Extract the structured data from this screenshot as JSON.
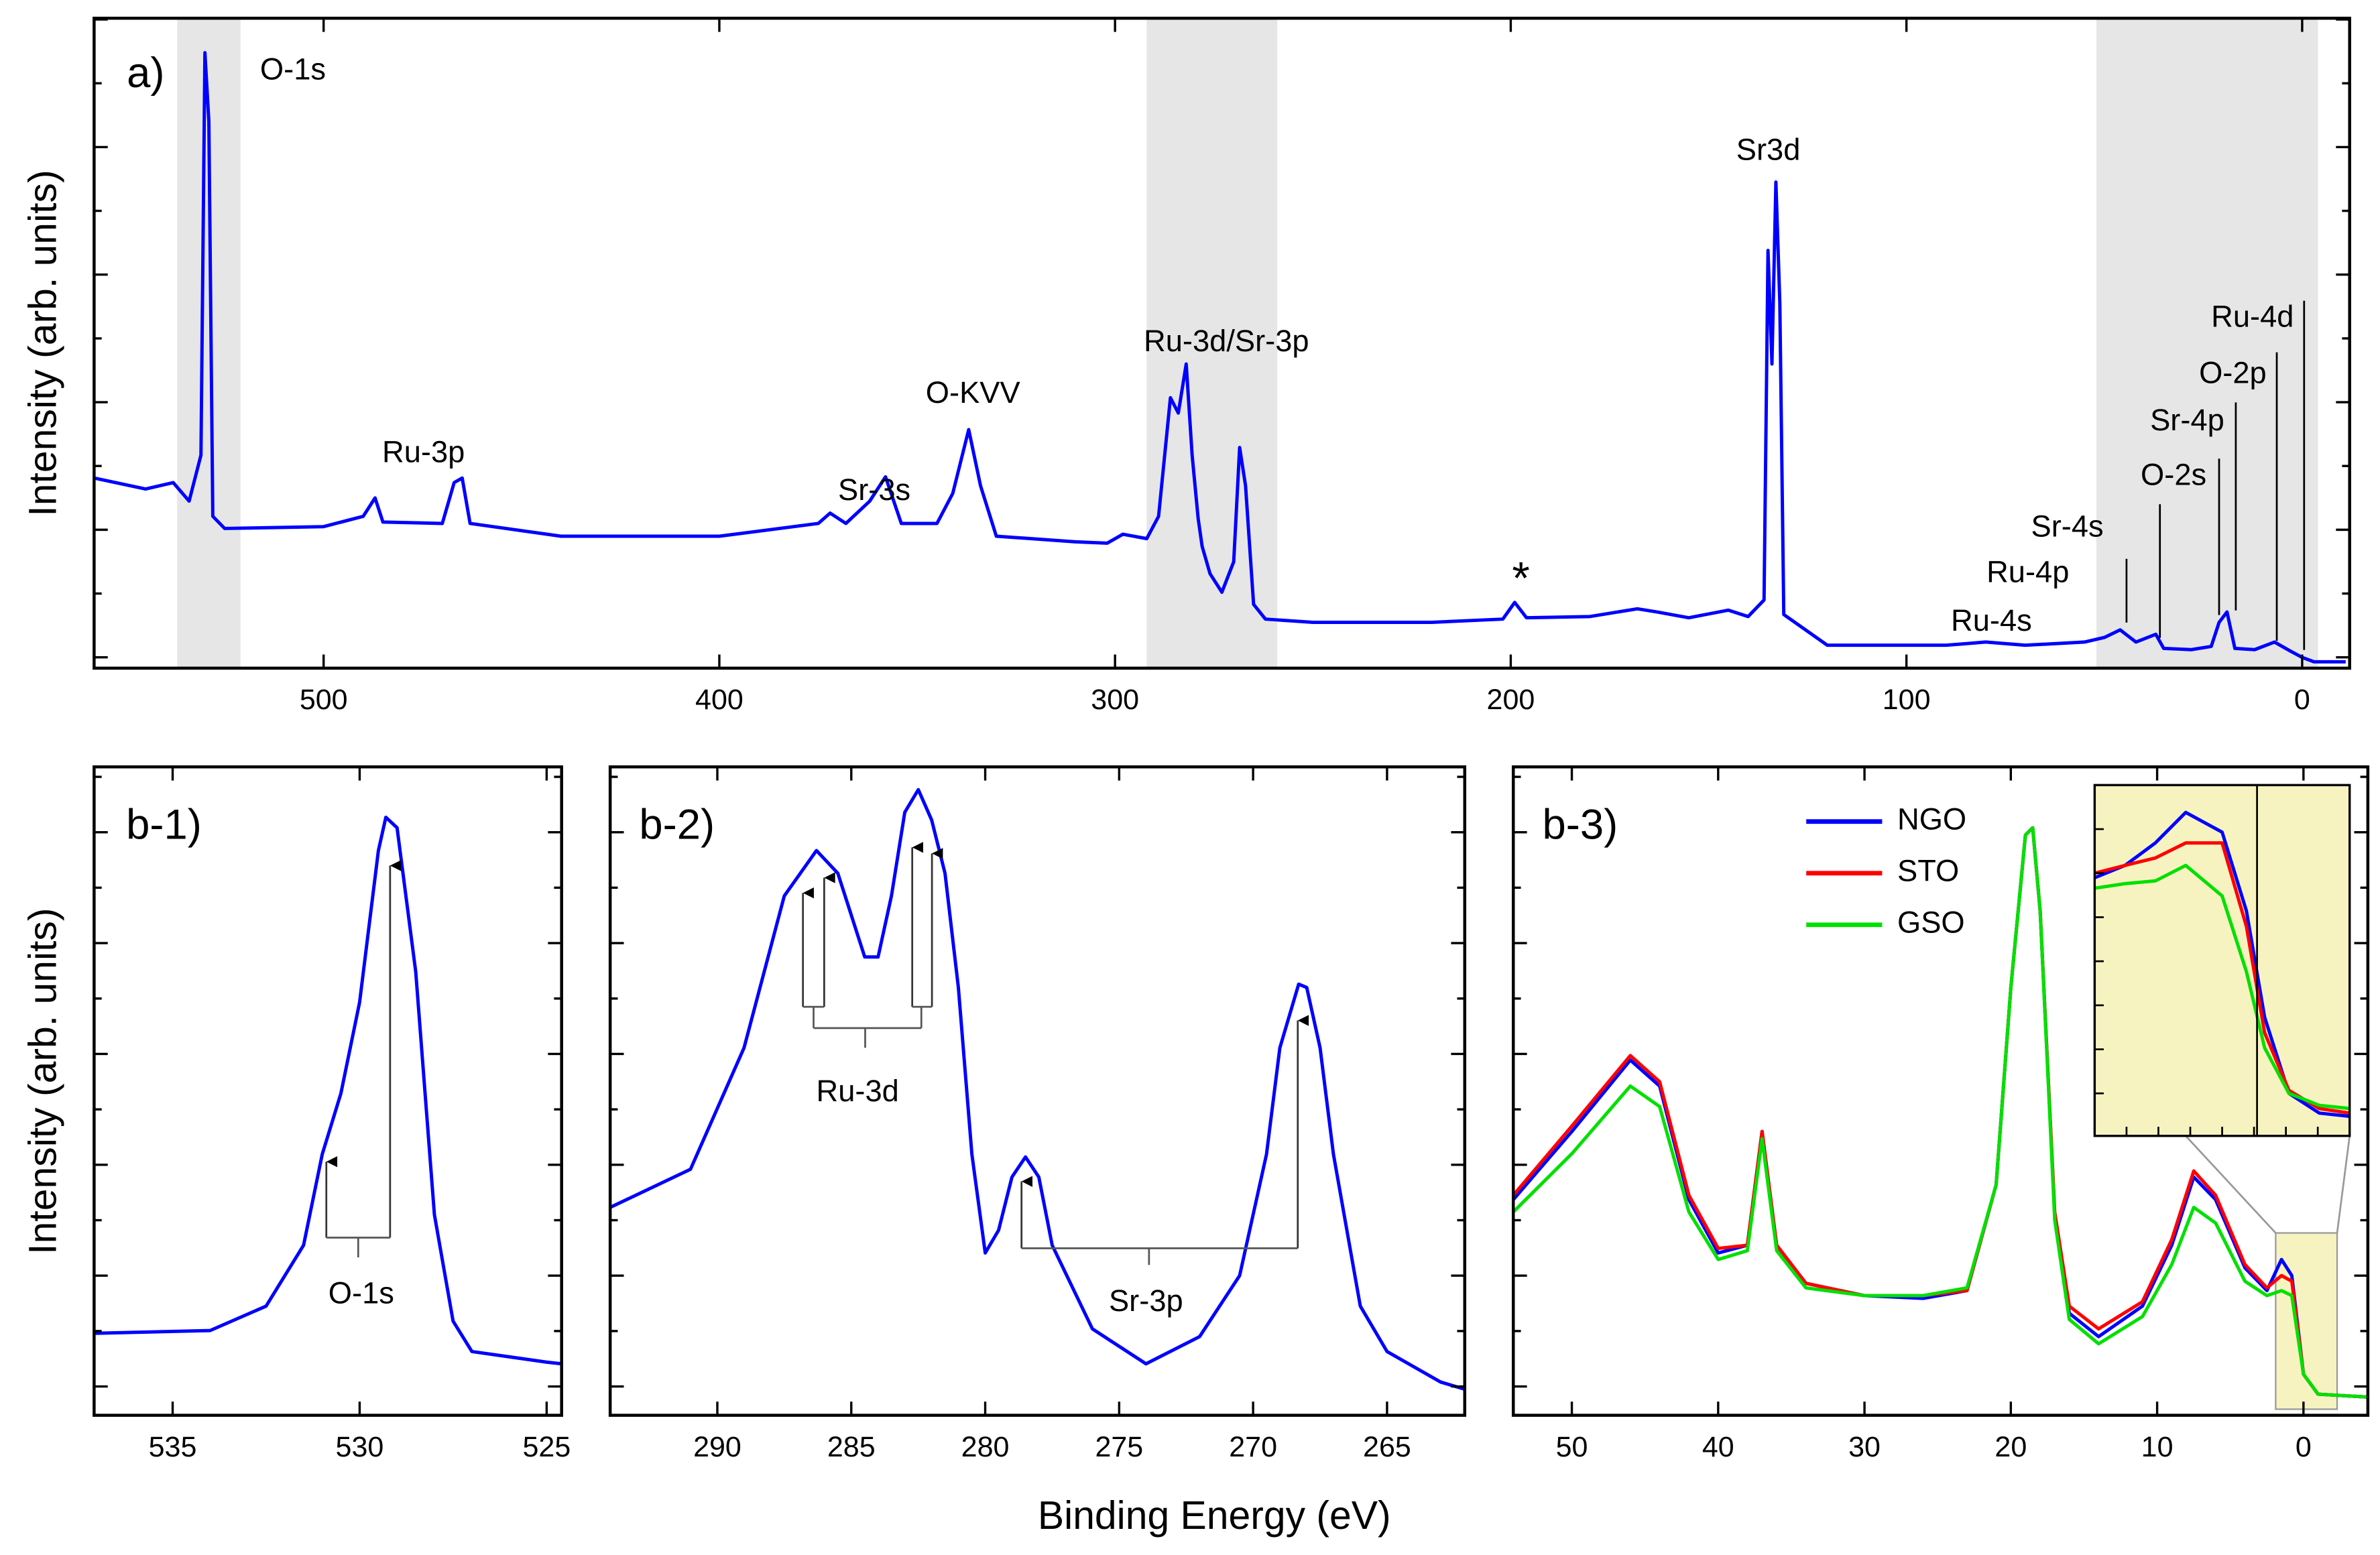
{
  "xlabel": "Binding Energy (eV)",
  "chart_data": [
    {
      "type": "line",
      "panel_label": "a)",
      "ylabel": "Intensity (arb. units)",
      "xlim": [
        558,
        -12
      ],
      "xticks": [
        500,
        400,
        300,
        200,
        100,
        0
      ],
      "ylim": [
        -1.7,
        100.2
      ],
      "yticks": [
        0,
        10,
        20,
        30,
        40,
        50,
        60,
        70,
        80,
        90,
        100
      ],
      "highlight_ranges": [
        [
          537,
          521
        ],
        [
          292,
          259
        ],
        [
          52,
          -4
        ]
      ],
      "x": [
        558,
        545,
        538,
        534,
        531,
        530,
        529,
        528,
        525,
        500,
        490,
        487,
        485,
        470,
        467,
        465,
        463,
        440,
        400,
        375,
        372,
        368,
        362,
        358,
        354,
        345,
        341,
        337,
        334,
        330,
        310,
        302,
        298,
        292,
        289,
        286,
        284,
        282,
        280.5,
        279,
        278,
        276,
        273,
        270,
        268.5,
        267,
        265,
        262,
        250,
        220,
        202,
        199,
        196,
        180,
        168,
        163,
        155,
        145,
        140,
        136,
        135,
        134,
        133,
        132,
        131,
        120,
        90,
        80,
        70,
        55,
        50,
        46,
        42,
        37,
        35,
        28,
        23,
        21,
        19,
        17,
        12,
        7,
        3,
        0,
        -3,
        -11
      ],
      "series": [
        {
          "color": "#0000ff",
          "values": [
            28.1,
            26.4,
            27.4,
            24.5,
            31.7,
            94.8,
            84,
            22.1,
            20.2,
            20.5,
            22.1,
            25,
            21.2,
            21,
            27.4,
            28.1,
            21,
            19,
            19,
            21,
            22.6,
            21,
            24.5,
            28.3,
            21,
            21,
            25.7,
            35.7,
            26.9,
            19,
            18.1,
            17.9,
            19.3,
            18.6,
            22.1,
            40.7,
            38.3,
            46,
            31.7,
            21.7,
            17.4,
            13.1,
            10.2,
            15,
            32.9,
            26.9,
            8.3,
            6,
            5.5,
            5.5,
            6,
            8.6,
            6.2,
            6.4,
            7.6,
            7.1,
            6.2,
            7.4,
            6.4,
            9,
            63.8,
            46,
            74.5,
            55.5,
            6.7,
            1.9,
            1.9,
            2.4,
            1.9,
            2.4,
            3.1,
            4.3,
            2.4,
            3.6,
            1.4,
            1.2,
            1.7,
            5.5,
            7.1,
            1.4,
            1.2,
            2.4,
            1,
            0,
            -0.7,
            -0.7
          ]
        }
      ],
      "annotations": [
        "O-1s",
        "Ru-3p",
        "Sr-3s",
        "O-KVV",
        "Ru-3d/Sr-3p",
        "*",
        "Sr3d",
        "Ru-4s",
        "Ru-4p",
        "Sr-4s",
        "O-2s",
        "Sr-4p",
        "O-2p",
        "Ru-4d"
      ]
    },
    {
      "type": "line",
      "panel_label": "b-1)",
      "ylabel": "Intensity (arb. units)",
      "xlim": [
        537.1,
        524.6
      ],
      "xticks": [
        535,
        530,
        525
      ],
      "ylim": [
        -5.2,
        111.8
      ],
      "yticks": [
        0,
        10,
        20,
        30,
        40,
        50,
        60,
        70,
        80,
        90,
        100,
        110
      ],
      "x": [
        537.1,
        534,
        532.5,
        531.5,
        531,
        530.5,
        530,
        529.5,
        529.3,
        529,
        528.5,
        528,
        527.5,
        527,
        525,
        524.6
      ],
      "series": [
        {
          "color": "#0000ff",
          "values": [
            9.6,
            10.1,
            14.5,
            25.5,
            41.9,
            52.9,
            69.3,
            96.7,
            102.7,
            100.8,
            74.8,
            31,
            11.8,
            6.3,
            4.4,
            4.1
          ]
        }
      ],
      "annotations": [
        "O-1s"
      ]
    },
    {
      "type": "line",
      "panel_label": "b-2)",
      "xlim": [
        294,
        262.1
      ],
      "xticks": [
        290,
        285,
        280,
        275,
        270,
        265
      ],
      "ylim": [
        -5.2,
        111.8
      ],
      "yticks": [
        0,
        10,
        20,
        30,
        40,
        50,
        60,
        70,
        80,
        90,
        100,
        110
      ],
      "x": [
        294,
        291,
        289,
        287.5,
        286.3,
        285.5,
        284.5,
        284,
        283.5,
        283,
        282.5,
        282,
        281.5,
        281,
        280.5,
        280,
        279.5,
        279,
        278.5,
        278,
        277.5,
        276,
        274,
        272,
        270.5,
        269.5,
        269,
        268.3,
        268,
        267.5,
        267,
        266,
        265,
        263,
        262.1
      ],
      "series": [
        {
          "color": "#0000ff",
          "values": [
            32.3,
            39.2,
            61.1,
            88.5,
            96.7,
            92.6,
            77.5,
            77.5,
            88.5,
            103.6,
            107.7,
            102.2,
            92.6,
            72,
            41.9,
            24.1,
            28.2,
            37.8,
            41.4,
            37.8,
            25.5,
            10.4,
            4.1,
            9,
            20,
            41.9,
            61.1,
            72.6,
            72,
            61.1,
            41.9,
            14.5,
            6.3,
            0.8,
            -0.5
          ]
        }
      ],
      "annotations": [
        "Ru-3d",
        "Sr-3p"
      ]
    },
    {
      "type": "line",
      "panel_label": "b-3)",
      "legend": "upper center",
      "xlim": [
        54,
        -4.4
      ],
      "xticks": [
        50,
        40,
        30,
        20,
        10,
        0
      ],
      "ylim": [
        -5.2,
        111.8
      ],
      "yticks": [
        0,
        10,
        20,
        30,
        40,
        50,
        60,
        70,
        80,
        90,
        100,
        110
      ],
      "zoom_box": {
        "x": [
          1.9,
          -2.3
        ],
        "y": [
          -4.1,
          27.7
        ]
      },
      "x": [
        54,
        50,
        46,
        44,
        42,
        40,
        38,
        37,
        36,
        34,
        30,
        26,
        23,
        21,
        20,
        19,
        18.5,
        18,
        17,
        16,
        14,
        11,
        9,
        7.5,
        6,
        4,
        2.5,
        1.5,
        0.8,
        0,
        -1,
        -4.4
      ],
      "series": [
        {
          "name": "NGO",
          "color": "#0000ff",
          "values": [
            33.7,
            46,
            58.9,
            54.2,
            33.7,
            24.1,
            25.5,
            46,
            25.5,
            18.6,
            16.4,
            15.9,
            17.3,
            36.4,
            72,
            99.5,
            100.8,
            85.8,
            31,
            13.2,
            9,
            14.5,
            25.5,
            37.8,
            33.7,
            21.4,
            17.3,
            22.9,
            20,
            2.2,
            -1.4,
            -1.9
          ]
        },
        {
          "name": "STO",
          "color": "#ff0000",
          "values": [
            34.5,
            47,
            59.7,
            55,
            34.5,
            24.9,
            25.5,
            46,
            25.5,
            18.6,
            16.4,
            16.4,
            17.3,
            36.4,
            72,
            99.5,
            100.8,
            85.8,
            31.5,
            14.5,
            10.4,
            15.3,
            26.5,
            38.9,
            34.5,
            22,
            17.8,
            20,
            19,
            2.2,
            -1.4,
            -1.9
          ]
        },
        {
          "name": "GSO",
          "color": "#00e000",
          "values": [
            31.5,
            42,
            54.2,
            50.5,
            31.5,
            22.9,
            24.5,
            44.7,
            24.5,
            17.8,
            16.4,
            16.4,
            17.8,
            36.4,
            72,
            99.5,
            100.8,
            85.8,
            30,
            12.1,
            7.7,
            12.6,
            22,
            32.3,
            29.5,
            19,
            16.4,
            17.3,
            16.4,
            2.2,
            -1.4,
            -1.9
          ]
        }
      ],
      "inset": {
        "type": "line",
        "background": "#f7f3c0",
        "xlim": [
          1.9,
          -2.3
        ],
        "ylim": [
          0,
          100
        ],
        "x": [
          1.9,
          1.4,
          0.9,
          0.4,
          -0.2,
          -0.6,
          -0.9,
          -1.3,
          -1.8,
          -2.3
        ],
        "series": [
          {
            "color": "#0000ff",
            "values": [
              73.6,
              77.1,
              83.5,
              92.2,
              86.6,
              64.1,
              33.8,
              12.1,
              6.5,
              5.6
            ]
          },
          {
            "color": "#ff0000",
            "values": [
              74.9,
              77.1,
              79.2,
              83.5,
              83.5,
              59.7,
              29.4,
              13,
              7.8,
              6.5
            ]
          },
          {
            "color": "#00e000",
            "values": [
              70.6,
              71.9,
              72.7,
              77.1,
              68.4,
              46.8,
              25.1,
              12.1,
              8.7,
              7.8
            ]
          }
        ]
      }
    }
  ]
}
